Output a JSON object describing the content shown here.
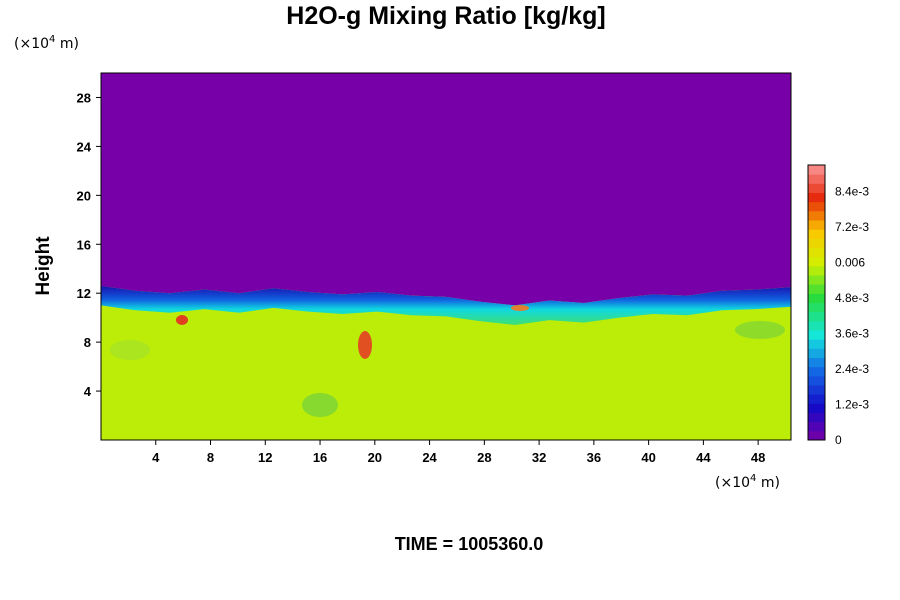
{
  "chart_data": {
    "type": "heatmap",
    "title": "H2O-g Mixing Ratio [kg/kg]",
    "ylabel": "Height",
    "x_unit": {
      "prefix": "(×10",
      "exponent": "4",
      "suffix": " m)"
    },
    "y_unit": {
      "prefix": "(×10",
      "exponent": "4",
      "suffix": " m)"
    },
    "xlim": [
      0,
      50.4
    ],
    "ylim": [
      0,
      30
    ],
    "x_ticks": [
      "4",
      "8",
      "12",
      "16",
      "20",
      "24",
      "28",
      "32",
      "36",
      "40",
      "44",
      "48"
    ],
    "y_ticks": [
      "4",
      "8",
      "12",
      "16",
      "20",
      "24",
      "28"
    ],
    "colorbar": {
      "range": [
        0,
        0.0093
      ],
      "tick_values": [
        0,
        0.0012,
        0.0024,
        0.0036,
        0.0048,
        0.006,
        0.0072,
        0.0084
      ],
      "tick_labels": [
        "0",
        "1.2e-3",
        "2.4e-3",
        "3.6e-3",
        "4.8e-3",
        "0.006",
        "7.2e-3",
        "8.4e-3"
      ]
    },
    "field_interface_height": [
      12.6,
      12.2,
      12.0,
      12.3,
      12.0,
      12.4,
      12.1,
      11.9,
      12.1,
      11.8,
      11.7,
      11.3,
      11.0,
      11.4,
      11.2,
      11.6,
      11.9,
      11.8,
      12.2,
      12.3,
      12.5
    ],
    "field_moist_value": 0.0058,
    "field_dry_value": 2e-05,
    "footer": "TIME = 1005360.0"
  },
  "colors": {
    "background": "#ffffff",
    "dry_air": "#7a00a8",
    "moist_air": "#dcf000"
  }
}
